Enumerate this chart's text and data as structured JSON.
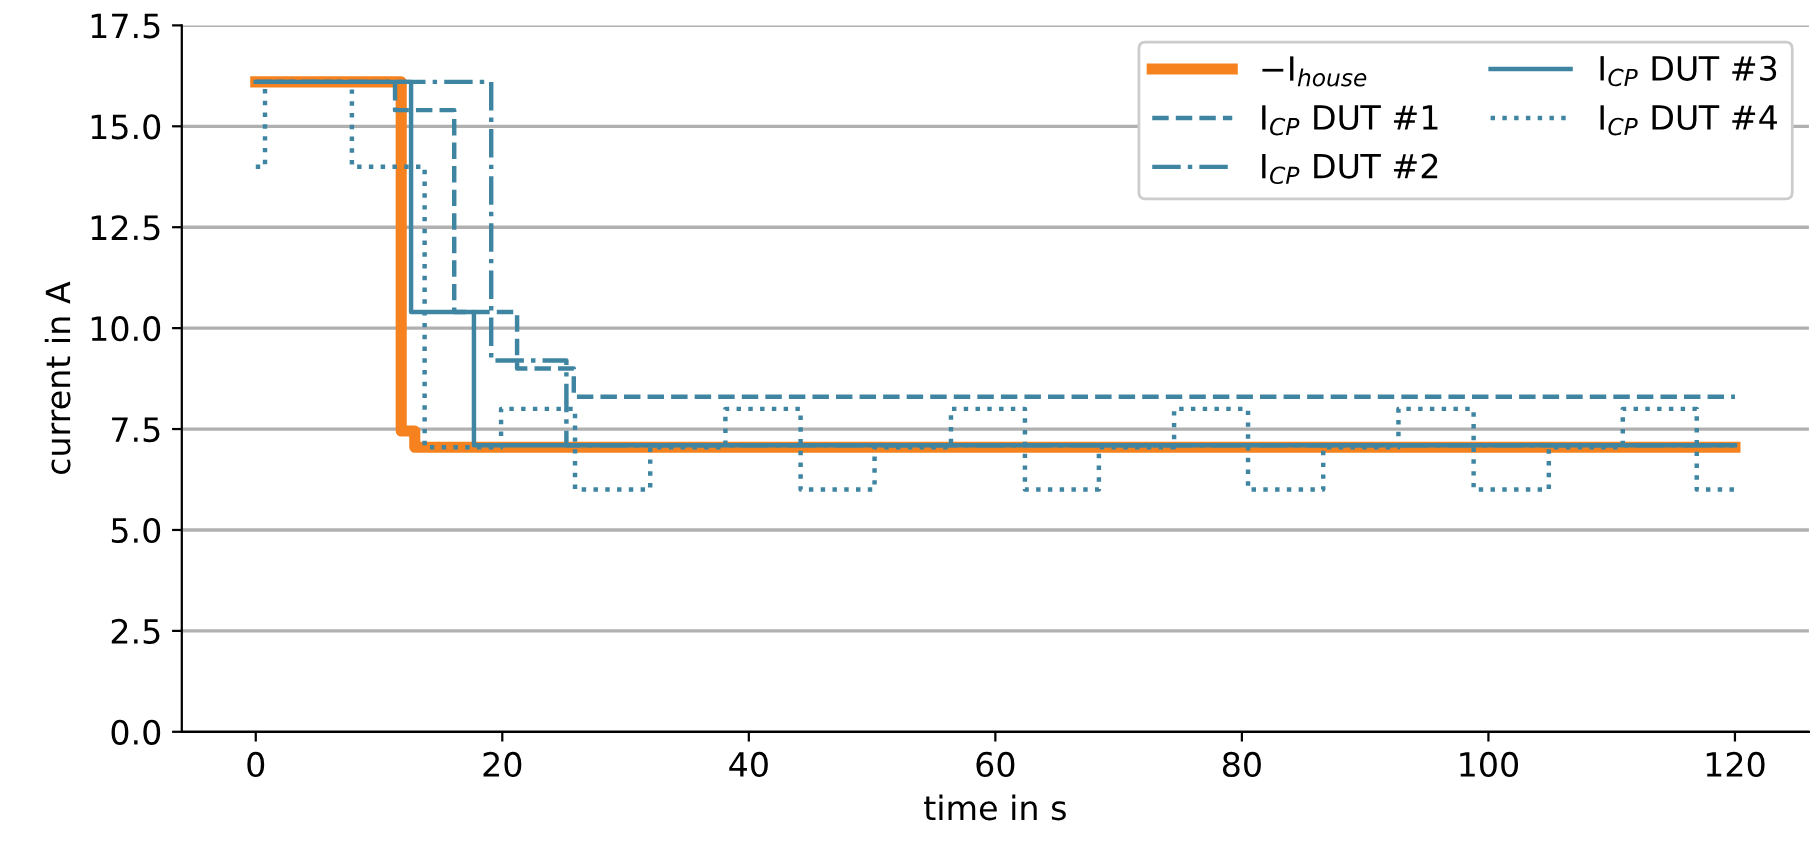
{
  "chart_data": {
    "type": "step",
    "xlabel": "time in s",
    "ylabel": "current in A",
    "xlim": [
      -6,
      126
    ],
    "xticks": [
      0,
      20,
      40,
      60,
      80,
      100,
      120
    ],
    "ylim": [
      0,
      17.5
    ],
    "yticks": [
      {
        "value": 0,
        "label": "0.0"
      },
      2.5,
      {
        "value": 5,
        "label": "5.0"
      },
      7.5,
      {
        "value": 10,
        "label": "10.0"
      },
      12.5,
      {
        "value": 15,
        "label": "15.0"
      },
      17.5
    ],
    "grid": "y",
    "legend": "top right",
    "marker": "none",
    "series": [
      {
        "name": "−I$_{house}$",
        "color": "#f5821f",
        "line_style": "solid",
        "x": [
          0,
          11.8,
          12.9,
          120
        ],
        "values": [
          16.1,
          7.45,
          7.05,
          7.05
        ]
      },
      {
        "name": "I$_{CP}$ DUT #1",
        "color": "#3f85a2",
        "line_style": "dashed",
        "x": [
          0,
          11.3,
          16.1,
          21.2,
          25.8,
          120
        ],
        "values": [
          16.1,
          15.4,
          10.4,
          9.0,
          8.3,
          8.3
        ]
      },
      {
        "name": "I$_{CP}$ DUT #2",
        "color": "#3f85a2",
        "line_style": "dashdot",
        "x": [
          0,
          19.1,
          25.2,
          120
        ],
        "values": [
          16.1,
          9.2,
          7.1,
          7.1
        ]
      },
      {
        "name": "I$_{CP}$ DUT #3",
        "color": "#3f85a2",
        "line_style": "solid",
        "x": [
          0,
          12.6,
          17.7,
          120
        ],
        "values": [
          16.1,
          10.4,
          7.1,
          7.1
        ]
      },
      {
        "name": "I$_{CP}$ DUT #4",
        "color": "#3f85a2",
        "line_style": "dotted",
        "x": [
          0,
          0.75,
          7.8,
          13.7,
          19.9,
          25.9,
          32.0,
          38.1,
          44.2,
          50.2,
          56.4,
          62.4,
          68.4,
          74.5,
          80.5,
          86.6,
          92.7,
          98.8,
          104.9,
          110.9,
          116.9,
          120
        ],
        "values": [
          14.0,
          16.1,
          14.0,
          7.05,
          8.0,
          6.0,
          7.05,
          8.0,
          6.0,
          7.05,
          8.0,
          6.0,
          7.05,
          8.0,
          6.0,
          7.05,
          8.0,
          6.0,
          7.05,
          8.0,
          6.0,
          6.0
        ]
      }
    ]
  }
}
